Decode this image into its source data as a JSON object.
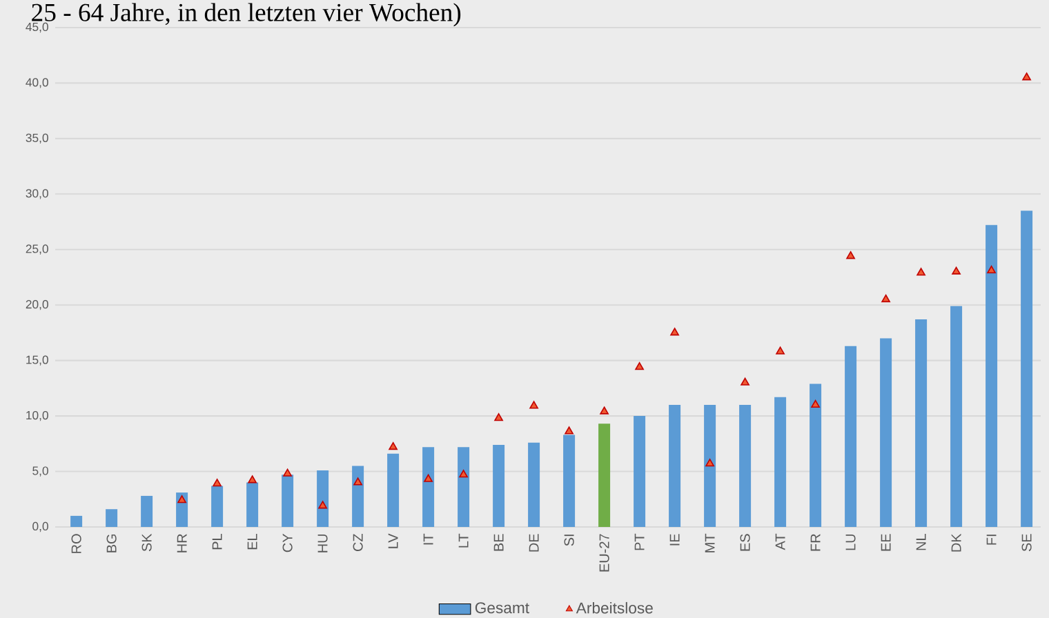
{
  "chart_data": {
    "type": "bar",
    "title": "25 - 64 Jahre, in den letzten vier Wochen)",
    "categories": [
      "RO",
      "BG",
      "SK",
      "HR",
      "PL",
      "EL",
      "CY",
      "HU",
      "CZ",
      "LV",
      "IT",
      "LT",
      "BE",
      "DE",
      "SI",
      "EU-27",
      "PT",
      "IE",
      "MT",
      "ES",
      "AT",
      "FR",
      "LU",
      "EE",
      "NL",
      "DK",
      "FI",
      "SE"
    ],
    "series": [
      {
        "name": "Gesamt",
        "color": "#5b9bd5",
        "colors": [
          "#5b9bd5",
          "#5b9bd5",
          "#5b9bd5",
          "#5b9bd5",
          "#5b9bd5",
          "#5b9bd5",
          "#5b9bd5",
          "#5b9bd5",
          "#5b9bd5",
          "#5b9bd5",
          "#5b9bd5",
          "#5b9bd5",
          "#5b9bd5",
          "#5b9bd5",
          "#5b9bd5",
          "#70ad47",
          "#5b9bd5",
          "#5b9bd5",
          "#5b9bd5",
          "#5b9bd5",
          "#5b9bd5",
          "#5b9bd5",
          "#5b9bd5",
          "#5b9bd5",
          "#5b9bd5",
          "#5b9bd5",
          "#5b9bd5",
          "#5b9bd5"
        ],
        "values": [
          1.0,
          1.6,
          2.8,
          3.1,
          3.7,
          4.0,
          4.7,
          5.1,
          5.5,
          6.6,
          7.2,
          7.2,
          7.4,
          7.6,
          8.3,
          9.3,
          10.0,
          11.0,
          11.0,
          11.0,
          11.7,
          12.9,
          16.3,
          17.0,
          18.7,
          19.9,
          27.2,
          28.5
        ]
      },
      {
        "name": "Arbeitslose",
        "type": "scatter",
        "color": "#c00000",
        "values": [
          null,
          null,
          null,
          2.4,
          3.9,
          4.2,
          4.8,
          1.9,
          4.0,
          7.2,
          4.3,
          4.7,
          9.8,
          10.9,
          8.6,
          10.4,
          14.4,
          17.5,
          5.7,
          13.0,
          15.8,
          11.0,
          24.4,
          20.5,
          22.9,
          23.0,
          23.1,
          40.5
        ]
      }
    ],
    "marker": "triangle",
    "ylim": [
      0,
      45
    ],
    "yticks": [
      {
        "value": 0,
        "label": "0,0"
      },
      {
        "value": 5,
        "label": "5,0"
      },
      {
        "value": 10,
        "label": "10,0"
      },
      {
        "value": 15,
        "label": "15,0"
      },
      {
        "value": 20,
        "label": "20,0"
      },
      {
        "value": 25,
        "label": "25,0"
      },
      {
        "value": 30,
        "label": "30,0"
      },
      {
        "value": 35,
        "label": "35,0"
      },
      {
        "value": 40,
        "label": "40,0"
      },
      {
        "value": 45,
        "label": "45,0"
      }
    ],
    "grid": "y",
    "legend": "bottom"
  }
}
